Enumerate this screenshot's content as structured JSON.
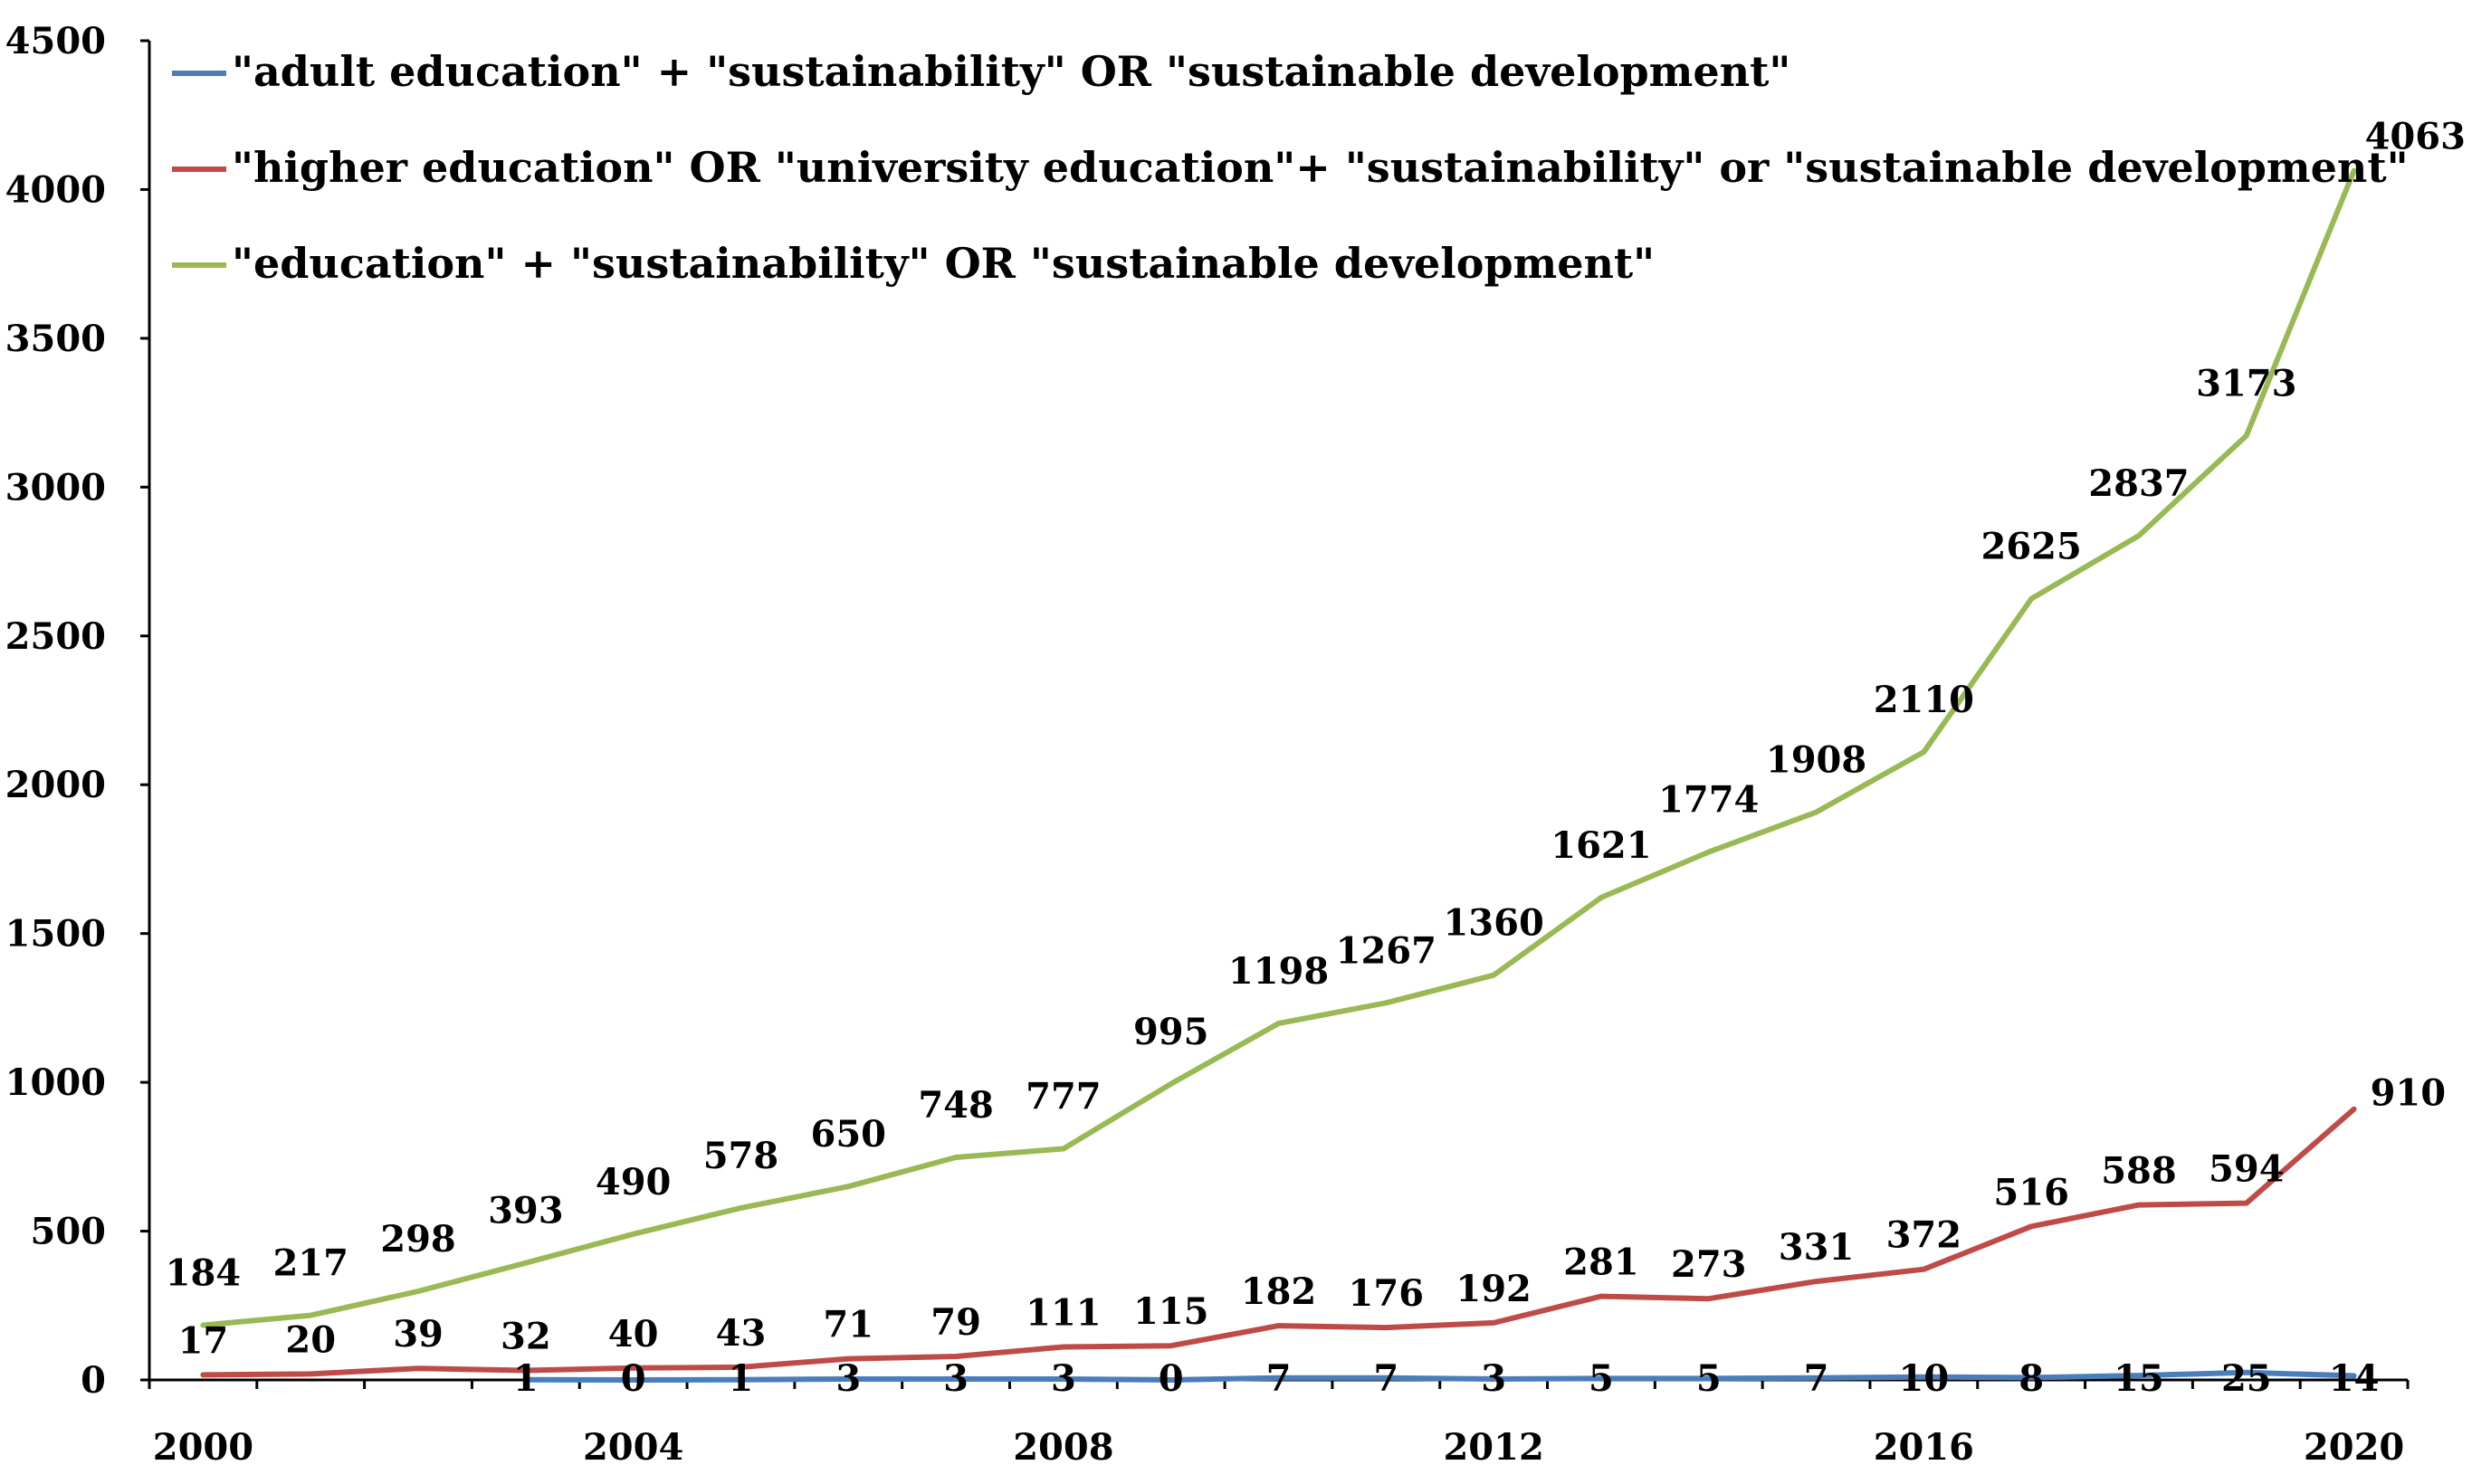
{
  "chart_data": {
    "type": "line",
    "title": "",
    "xlabel": "",
    "ylabel": "",
    "ylim": [
      0,
      4500
    ],
    "y_ticks": [
      0,
      500,
      1000,
      1500,
      2000,
      2500,
      3000,
      3500,
      4000,
      4500
    ],
    "x": [
      2000,
      2001,
      2002,
      2003,
      2004,
      2005,
      2006,
      2007,
      2008,
      2009,
      2010,
      2011,
      2012,
      2013,
      2014,
      2015,
      2016,
      2017,
      2018,
      2019,
      2020
    ],
    "x_ticks": [
      2000,
      2004,
      2008,
      2012,
      2016,
      2020
    ],
    "legend_position": "top-left",
    "series": [
      {
        "name": "\"adult education\" + \"sustainability\" OR \"sustainable development\"",
        "color": "#4a7ebb",
        "values": [
          null,
          null,
          null,
          1,
          0,
          1,
          3,
          3,
          3,
          0,
          7,
          7,
          3,
          5,
          5,
          7,
          10,
          8,
          15,
          25,
          14
        ],
        "labels": [
          null,
          null,
          null,
          "1",
          "0",
          "1",
          "3",
          "3",
          "3",
          "0",
          "7",
          "7",
          "3",
          "5",
          "5",
          "7",
          "10",
          "8",
          "15",
          "25",
          "14"
        ]
      },
      {
        "name": "\"higher education\" OR \"university education\"+ \"sustainability\" or \"sustainable development\"",
        "color": "#be4b48",
        "values": [
          17,
          20,
          39,
          32,
          40,
          43,
          71,
          79,
          111,
          115,
          182,
          176,
          192,
          281,
          273,
          331,
          372,
          516,
          588,
          594,
          910
        ],
        "labels": [
          "17",
          "20",
          "39",
          "32",
          "40",
          "43",
          "71",
          "79",
          "111",
          "115",
          "182",
          "176",
          "192",
          "281",
          "273",
          "331",
          "372",
          "516",
          "588",
          "594",
          "910"
        ]
      },
      {
        "name": "\"education\" + \"sustainability\" OR \"sustainable development\"",
        "color": "#98b954",
        "values": [
          184,
          217,
          298,
          393,
          490,
          578,
          650,
          748,
          777,
          995,
          1198,
          1267,
          1360,
          1621,
          1774,
          1908,
          2110,
          2625,
          2837,
          3173,
          4063
        ],
        "labels": [
          "184",
          "217",
          "298",
          "393",
          "490",
          "578",
          "650",
          "748",
          "777",
          "995",
          "1198",
          "1267",
          "1360",
          "1621",
          "1774",
          "1908",
          "2110",
          "2625",
          "2837",
          "3173",
          "4063"
        ]
      }
    ]
  }
}
